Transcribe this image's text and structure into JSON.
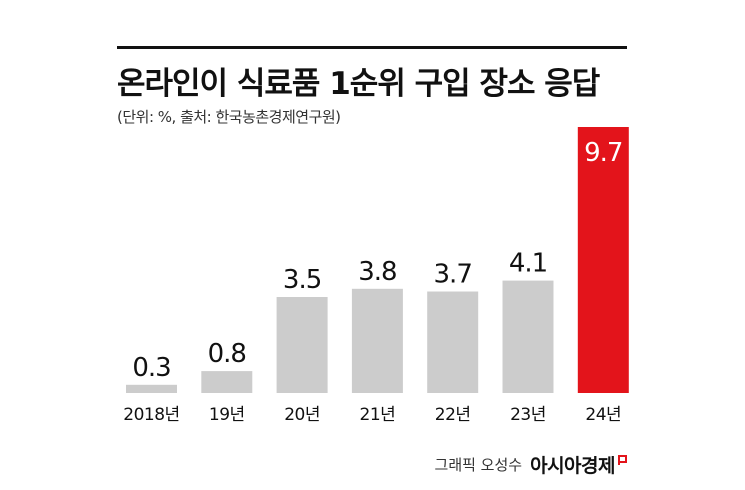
{
  "title": "온라인이 식료품 1순위 구입 장소 응답",
  "subtitle": "(단위: %, 출처: 한국농촌경제연구원)",
  "credit": {
    "byline": "그래픽 오성수",
    "brand": "아시아경제",
    "brand_color": "#e3141b"
  },
  "colors": {
    "bar": "#cccccc",
    "highlight": "#e3141b",
    "label": "#111111",
    "highlight_label": "#ffffff"
  },
  "chart_data": {
    "type": "bar",
    "title": "온라인이 식료품 1순위 구입 장소 응답",
    "subtitle": "(단위: %, 출처: 한국농촌경제연구원)",
    "categories": [
      "2018년",
      "19년",
      "20년",
      "21년",
      "22년",
      "23년",
      "24년"
    ],
    "values": [
      0.3,
      0.8,
      3.5,
      3.8,
      3.7,
      4.1,
      9.7
    ],
    "value_labels": [
      "0.3",
      "0.8",
      "3.5",
      "3.8",
      "3.7",
      "4.1",
      "9.7"
    ],
    "highlight_index": 6,
    "ylim": [
      0,
      9.7
    ],
    "grid": false,
    "legend": "none"
  }
}
